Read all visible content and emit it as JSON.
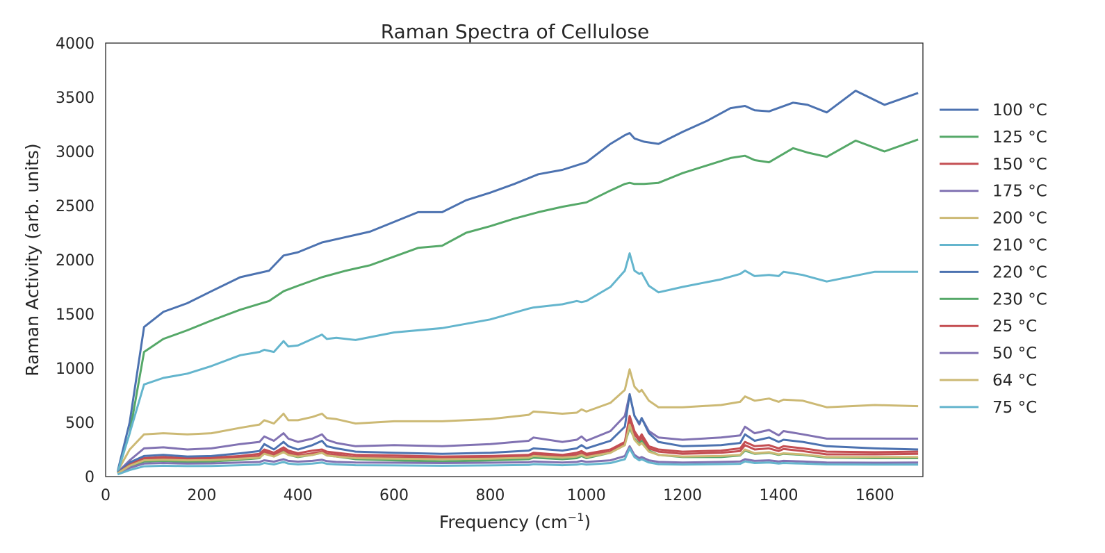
{
  "chart_data": {
    "type": "line",
    "title": "Raman Spectra of Cellulose",
    "xlabel": "Frequency (cm",
    "xlabel_sup": "−1",
    "xlabel_end": ")",
    "ylabel": "Raman Activity (arb. units)",
    "xlim": [
      0,
      1700
    ],
    "ylim": [
      0,
      4000
    ],
    "xticks": [
      0,
      200,
      400,
      600,
      800,
      1000,
      1200,
      1400,
      1600
    ],
    "yticks": [
      0,
      500,
      1000,
      1500,
      2000,
      2500,
      3000,
      3500,
      4000
    ],
    "grid": false,
    "legend": "right-outside",
    "series": [
      {
        "name": "100 °C",
        "color": "#4C72B0",
        "x": [
          25,
          50,
          80,
          120,
          170,
          220,
          280,
          340,
          370,
          400,
          450,
          500,
          550,
          600,
          650,
          700,
          750,
          800,
          850,
          900,
          950,
          1000,
          1050,
          1080,
          1090,
          1100,
          1120,
          1150,
          1200,
          1250,
          1300,
          1330,
          1350,
          1380,
          1430,
          1460,
          1500,
          1560,
          1620,
          1690
        ],
        "y": [
          50,
          500,
          1380,
          1520,
          1600,
          1710,
          1840,
          1900,
          2040,
          2070,
          2160,
          2210,
          2260,
          2350,
          2440,
          2440,
          2550,
          2620,
          2700,
          2790,
          2830,
          2900,
          3070,
          3150,
          3170,
          3120,
          3090,
          3070,
          3180,
          3280,
          3400,
          3420,
          3380,
          3370,
          3450,
          3430,
          3360,
          3560,
          3430,
          3540
        ]
      },
      {
        "name": "125 °C",
        "color": "#55A868",
        "x": [
          25,
          50,
          80,
          120,
          170,
          220,
          280,
          340,
          370,
          400,
          450,
          500,
          550,
          600,
          650,
          700,
          750,
          800,
          850,
          900,
          950,
          1000,
          1050,
          1080,
          1090,
          1100,
          1120,
          1150,
          1200,
          1250,
          1300,
          1330,
          1350,
          1380,
          1430,
          1460,
          1500,
          1560,
          1620,
          1690
        ],
        "y": [
          40,
          400,
          1150,
          1270,
          1350,
          1440,
          1540,
          1620,
          1710,
          1760,
          1840,
          1900,
          1950,
          2030,
          2110,
          2130,
          2250,
          2310,
          2380,
          2440,
          2490,
          2530,
          2640,
          2700,
          2710,
          2700,
          2700,
          2710,
          2800,
          2870,
          2940,
          2960,
          2920,
          2900,
          3030,
          2990,
          2950,
          3100,
          3000,
          3110
        ]
      },
      {
        "name": "150 °C",
        "color": "#C44E52",
        "x": [
          25,
          50,
          80,
          120,
          170,
          220,
          280,
          320,
          330,
          350,
          370,
          380,
          400,
          430,
          450,
          460,
          480,
          520,
          600,
          700,
          800,
          880,
          890,
          950,
          980,
          990,
          1000,
          1050,
          1080,
          1090,
          1100,
          1110,
          1115,
          1130,
          1150,
          1200,
          1280,
          1320,
          1330,
          1350,
          1380,
          1400,
          1410,
          1450,
          1500,
          1600,
          1690
        ],
        "y": [
          30,
          120,
          170,
          180,
          170,
          175,
          190,
          210,
          250,
          220,
          270,
          240,
          215,
          240,
          250,
          230,
          220,
          200,
          195,
          185,
          190,
          200,
          220,
          200,
          220,
          235,
          210,
          250,
          320,
          560,
          420,
          350,
          390,
          280,
          250,
          230,
          240,
          260,
          320,
          280,
          290,
          260,
          280,
          260,
          230,
          225,
          230
        ]
      },
      {
        "name": "175 °C",
        "color": "#8172B2",
        "x": [
          25,
          50,
          80,
          120,
          170,
          220,
          280,
          320,
          330,
          350,
          370,
          380,
          400,
          430,
          450,
          460,
          480,
          520,
          600,
          700,
          800,
          880,
          890,
          950,
          980,
          990,
          1000,
          1050,
          1080,
          1090,
          1100,
          1110,
          1115,
          1130,
          1150,
          1200,
          1280,
          1320,
          1330,
          1350,
          1380,
          1400,
          1410,
          1450,
          1500,
          1600,
          1690
        ],
        "y": [
          40,
          150,
          260,
          270,
          250,
          260,
          300,
          320,
          370,
          330,
          400,
          350,
          320,
          350,
          390,
          340,
          310,
          280,
          290,
          280,
          300,
          330,
          360,
          320,
          340,
          370,
          330,
          420,
          560,
          760,
          560,
          480,
          540,
          420,
          360,
          340,
          360,
          380,
          460,
          400,
          430,
          380,
          420,
          390,
          350,
          350,
          350
        ]
      },
      {
        "name": "200 °C",
        "color": "#CCB974",
        "x": [
          25,
          50,
          80,
          120,
          170,
          220,
          280,
          320,
          330,
          350,
          370,
          380,
          400,
          430,
          450,
          460,
          480,
          520,
          600,
          700,
          800,
          880,
          890,
          950,
          980,
          990,
          1000,
          1050,
          1080,
          1090,
          1100,
          1110,
          1115,
          1130,
          1150,
          1200,
          1280,
          1320,
          1330,
          1350,
          1380,
          1400,
          1410,
          1450,
          1500,
          1600,
          1690
        ],
        "y": [
          50,
          250,
          390,
          400,
          390,
          400,
          450,
          480,
          520,
          490,
          580,
          520,
          520,
          550,
          580,
          540,
          530,
          490,
          510,
          510,
          530,
          570,
          600,
          580,
          590,
          620,
          600,
          680,
          800,
          990,
          830,
          780,
          800,
          700,
          640,
          640,
          660,
          690,
          740,
          700,
          720,
          690,
          710,
          700,
          640,
          660,
          650
        ]
      },
      {
        "name": "210 °C",
        "color": "#64B5CD",
        "x": [
          25,
          50,
          80,
          120,
          170,
          220,
          280,
          320,
          330,
          350,
          370,
          380,
          400,
          430,
          450,
          460,
          480,
          520,
          600,
          700,
          800,
          880,
          890,
          950,
          980,
          990,
          1000,
          1050,
          1080,
          1090,
          1100,
          1110,
          1115,
          1130,
          1150,
          1200,
          1280,
          1320,
          1330,
          1350,
          1380,
          1400,
          1410,
          1450,
          1500,
          1600,
          1690
        ],
        "y": [
          40,
          400,
          850,
          910,
          950,
          1020,
          1120,
          1150,
          1170,
          1150,
          1250,
          1200,
          1210,
          1270,
          1310,
          1270,
          1280,
          1260,
          1330,
          1370,
          1450,
          1550,
          1560,
          1590,
          1620,
          1610,
          1620,
          1750,
          1900,
          2060,
          1900,
          1870,
          1880,
          1760,
          1700,
          1750,
          1820,
          1870,
          1900,
          1850,
          1860,
          1850,
          1890,
          1860,
          1800,
          1890,
          1890
        ]
      },
      {
        "name": "220 °C",
        "color": "#4C72B0",
        "x": [
          25,
          50,
          80,
          120,
          170,
          220,
          280,
          320,
          330,
          350,
          370,
          380,
          400,
          430,
          450,
          460,
          480,
          520,
          600,
          700,
          800,
          880,
          890,
          950,
          980,
          990,
          1000,
          1050,
          1080,
          1090,
          1100,
          1110,
          1115,
          1130,
          1150,
          1200,
          1280,
          1320,
          1330,
          1350,
          1380,
          1400,
          1410,
          1450,
          1500,
          1600,
          1690
        ],
        "y": [
          35,
          130,
          190,
          200,
          185,
          190,
          215,
          235,
          300,
          250,
          320,
          280,
          250,
          290,
          330,
          280,
          260,
          230,
          220,
          210,
          220,
          240,
          260,
          240,
          260,
          290,
          260,
          330,
          460,
          760,
          560,
          490,
          540,
          400,
          320,
          280,
          290,
          310,
          390,
          330,
          360,
          320,
          340,
          320,
          280,
          260,
          250
        ]
      },
      {
        "name": "230 °C",
        "color": "#55A868",
        "x": [
          25,
          50,
          80,
          120,
          170,
          220,
          280,
          320,
          330,
          350,
          370,
          380,
          400,
          430,
          450,
          460,
          480,
          520,
          600,
          700,
          800,
          880,
          890,
          950,
          980,
          990,
          1000,
          1050,
          1080,
          1090,
          1100,
          1110,
          1115,
          1130,
          1150,
          1200,
          1280,
          1320,
          1330,
          1350,
          1380,
          1400,
          1410,
          1450,
          1500,
          1600,
          1690
        ],
        "y": [
          30,
          90,
          140,
          145,
          135,
          140,
          155,
          170,
          220,
          185,
          230,
          200,
          180,
          200,
          220,
          195,
          185,
          160,
          150,
          140,
          150,
          160,
          175,
          160,
          170,
          190,
          170,
          220,
          300,
          450,
          350,
          300,
          330,
          240,
          200,
          180,
          180,
          195,
          240,
          210,
          220,
          200,
          210,
          200,
          175,
          170,
          170
        ]
      },
      {
        "name": "25 °C",
        "color": "#C44E52",
        "x": [
          25,
          50,
          80,
          120,
          170,
          220,
          280,
          320,
          330,
          350,
          370,
          380,
          400,
          430,
          450,
          460,
          480,
          520,
          600,
          700,
          800,
          880,
          890,
          950,
          980,
          990,
          1000,
          1050,
          1080,
          1090,
          1100,
          1110,
          1115,
          1130,
          1150,
          1200,
          1280,
          1320,
          1330,
          1350,
          1380,
          1400,
          1410,
          1450,
          1500,
          1600,
          1690
        ],
        "y": [
          30,
          110,
          155,
          165,
          155,
          160,
          175,
          190,
          230,
          200,
          250,
          220,
          195,
          215,
          230,
          210,
          200,
          180,
          175,
          170,
          175,
          185,
          200,
          185,
          200,
          215,
          195,
          230,
          300,
          520,
          390,
          330,
          360,
          260,
          230,
          210,
          220,
          235,
          290,
          250,
          260,
          235,
          255,
          235,
          205,
          205,
          210
        ]
      },
      {
        "name": "50 °C",
        "color": "#8172B2",
        "x": [
          25,
          50,
          80,
          120,
          170,
          220,
          280,
          320,
          330,
          350,
          370,
          380,
          400,
          430,
          450,
          460,
          480,
          520,
          600,
          700,
          800,
          880,
          890,
          950,
          980,
          990,
          1000,
          1050,
          1080,
          1090,
          1100,
          1110,
          1115,
          1130,
          1150,
          1200,
          1280,
          1320,
          1330,
          1350,
          1380,
          1400,
          1410,
          1450,
          1500,
          1600,
          1690
        ],
        "y": [
          25,
          80,
          120,
          125,
          120,
          122,
          130,
          135,
          150,
          138,
          160,
          145,
          138,
          145,
          155,
          142,
          135,
          130,
          128,
          125,
          128,
          132,
          140,
          130,
          135,
          145,
          135,
          150,
          190,
          280,
          200,
          170,
          180,
          150,
          135,
          130,
          135,
          140,
          160,
          145,
          150,
          140,
          145,
          140,
          130,
          128,
          130
        ]
      },
      {
        "name": "64 °C",
        "color": "#CCB974",
        "x": [
          25,
          50,
          80,
          120,
          170,
          220,
          280,
          320,
          330,
          350,
          370,
          380,
          400,
          430,
          450,
          460,
          480,
          520,
          600,
          700,
          800,
          880,
          890,
          950,
          980,
          990,
          1000,
          1050,
          1080,
          1090,
          1100,
          1110,
          1115,
          1130,
          1150,
          1200,
          1280,
          1320,
          1330,
          1350,
          1380,
          1400,
          1410,
          1450,
          1500,
          1600,
          1690
        ],
        "y": [
          30,
          100,
          150,
          155,
          150,
          152,
          165,
          175,
          210,
          185,
          225,
          200,
          185,
          200,
          220,
          195,
          185,
          170,
          165,
          160,
          165,
          175,
          190,
          175,
          185,
          200,
          180,
          220,
          290,
          480,
          340,
          290,
          310,
          230,
          200,
          185,
          190,
          200,
          250,
          215,
          225,
          205,
          215,
          205,
          180,
          180,
          180
        ]
      },
      {
        "name": "75 °C",
        "color": "#64B5CD",
        "x": [
          25,
          50,
          80,
          120,
          170,
          220,
          280,
          320,
          330,
          350,
          370,
          380,
          400,
          430,
          450,
          460,
          480,
          520,
          600,
          700,
          800,
          880,
          890,
          950,
          980,
          990,
          1000,
          1050,
          1080,
          1090,
          1100,
          1110,
          1115,
          1130,
          1150,
          1200,
          1280,
          1320,
          1330,
          1350,
          1380,
          1400,
          1410,
          1450,
          1500,
          1600,
          1690
        ],
        "y": [
          20,
          60,
          95,
          100,
          97,
          98,
          105,
          110,
          125,
          112,
          135,
          120,
          112,
          120,
          130,
          118,
          112,
          105,
          103,
          100,
          103,
          107,
          115,
          105,
          110,
          118,
          110,
          125,
          160,
          260,
          180,
          150,
          160,
          130,
          115,
          110,
          115,
          118,
          140,
          125,
          130,
          120,
          125,
          120,
          112,
          110,
          110
        ]
      }
    ]
  }
}
